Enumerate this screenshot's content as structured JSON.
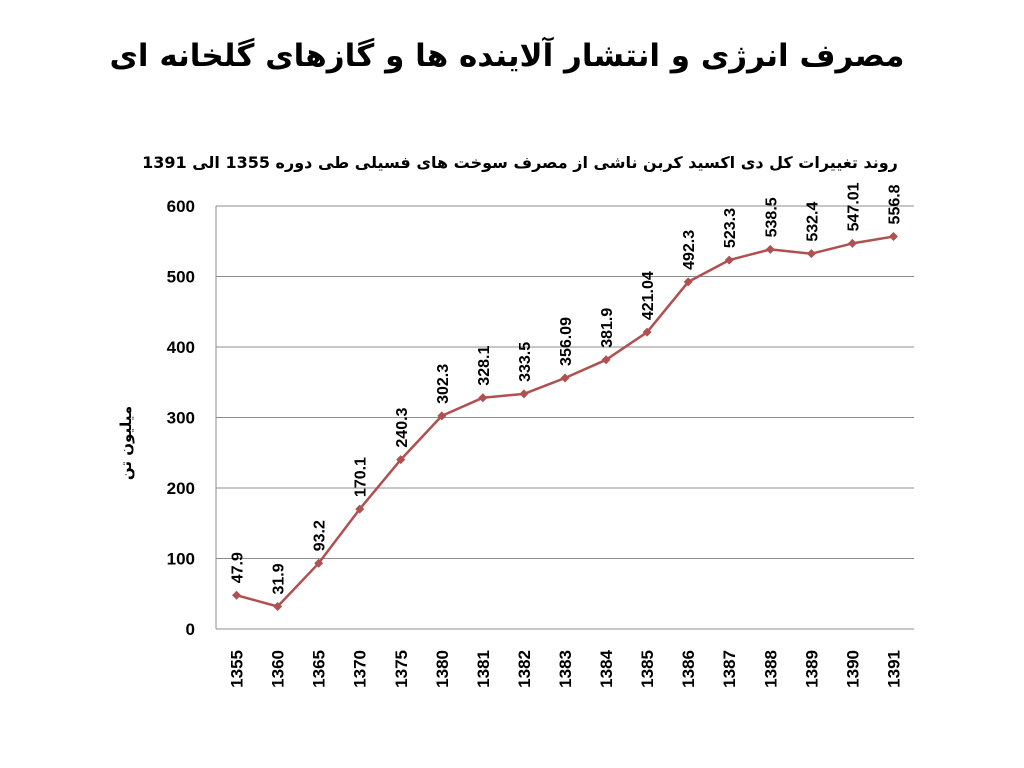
{
  "slide": {
    "title": "مصرف انرژی و انتشار آلاینده ها و گازهای گلخانه ای"
  },
  "chart_data": {
    "type": "line",
    "title": "روند تغییرات کل دی اکسید کربن ناشی از مصرف سوخت های فسیلی طی دوره 1355 الی 1391",
    "xlabel": "",
    "ylabel": "میلیون تن",
    "categories": [
      "1355",
      "1360",
      "1365",
      "1370",
      "1375",
      "1380",
      "1381",
      "1382",
      "1383",
      "1384",
      "1385",
      "1386",
      "1387",
      "1388",
      "1389",
      "1390",
      "1391"
    ],
    "series": [
      {
        "values": [
          47.9,
          31.9,
          93.2,
          170.1,
          240.3,
          302.3,
          328.1,
          333.5,
          356.09,
          381.9,
          421.04,
          492.3,
          523.3,
          538.5,
          532.4,
          547.01,
          556.8
        ],
        "labels": [
          "47.9",
          "31.9",
          "93.2",
          "170.1",
          "240.3",
          "302.3",
          "328.1",
          "333.5",
          "356.09",
          "381.9",
          "421.04",
          "492.3",
          "523.3",
          "538.5",
          "532.4",
          "547.01",
          "556.8"
        ],
        "color": "#b05050"
      }
    ],
    "ylim": [
      0,
      600
    ],
    "yticks": [
      "0",
      "100",
      "200",
      "300",
      "400",
      "500",
      "600"
    ],
    "grid": true,
    "legend": "none"
  }
}
